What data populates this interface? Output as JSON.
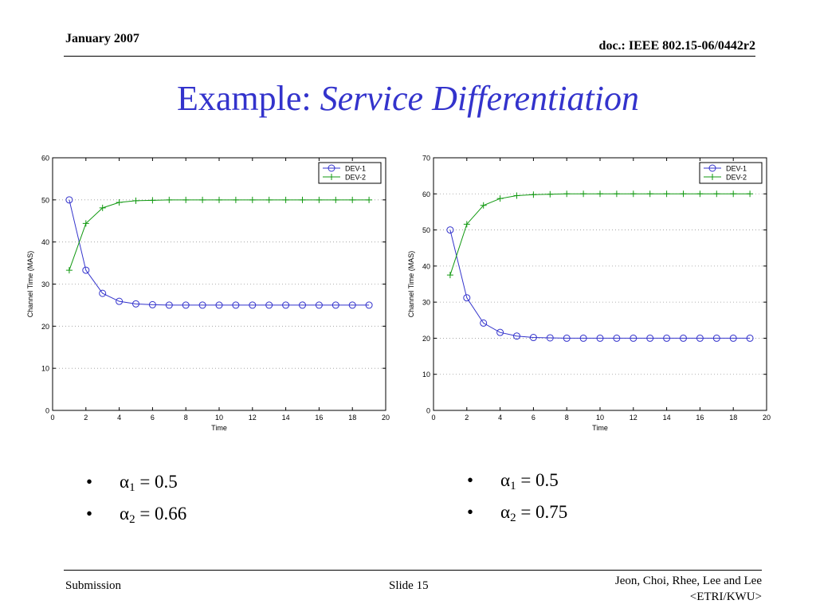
{
  "header": {
    "date": "January 2007",
    "doc_id": "doc.: IEEE 802.15-06/0442r2"
  },
  "title": {
    "prefix": "Example: ",
    "emphasis": "Service Differentiation"
  },
  "colors": {
    "title": "#3333cc",
    "dev1": "#3333cc",
    "dev2": "#119911"
  },
  "chart_data": [
    {
      "type": "line",
      "xlabel": "Time",
      "ylabel": "Channel Time (MAS)",
      "xlim": [
        0,
        20
      ],
      "ylim": [
        0,
        60
      ],
      "xticks": [
        0,
        2,
        4,
        6,
        8,
        10,
        12,
        14,
        16,
        18,
        20
      ],
      "yticks": [
        0,
        10,
        20,
        30,
        40,
        50,
        60
      ],
      "grid": "dotted horizontal",
      "legend": "top-right",
      "x": [
        1,
        2,
        3,
        4,
        5,
        6,
        7,
        8,
        9,
        10,
        11,
        12,
        13,
        14,
        15,
        16,
        17,
        18,
        19
      ],
      "series": [
        {
          "name": "DEV-1",
          "marker": "circle",
          "values": [
            50,
            33.3,
            27.8,
            25.9,
            25.3,
            25.1,
            25.0,
            25.0,
            25.0,
            25.0,
            25.0,
            25.0,
            25.0,
            25.0,
            25.0,
            25.0,
            25.0,
            25.0,
            25.0
          ]
        },
        {
          "name": "DEV-2",
          "marker": "plus",
          "values": [
            33.3,
            44.4,
            48.1,
            49.4,
            49.8,
            49.9,
            50.0,
            50.0,
            50.0,
            50.0,
            50.0,
            50.0,
            50.0,
            50.0,
            50.0,
            50.0,
            50.0,
            50.0,
            50.0
          ]
        }
      ]
    },
    {
      "type": "line",
      "xlabel": "Time",
      "ylabel": "Channel Time (MAS)",
      "xlim": [
        0,
        20
      ],
      "ylim": [
        0,
        70
      ],
      "xticks": [
        0,
        2,
        4,
        6,
        8,
        10,
        12,
        14,
        16,
        18,
        20
      ],
      "yticks": [
        0,
        10,
        20,
        30,
        40,
        50,
        60,
        70
      ],
      "grid": "dotted horizontal",
      "legend": "top-right",
      "x": [
        1,
        2,
        3,
        4,
        5,
        6,
        7,
        8,
        9,
        10,
        11,
        12,
        13,
        14,
        15,
        16,
        17,
        18,
        19
      ],
      "series": [
        {
          "name": "DEV-1",
          "marker": "circle",
          "values": [
            50,
            31.2,
            24.2,
            21.6,
            20.6,
            20.2,
            20.1,
            20.0,
            20.0,
            20.0,
            20.0,
            20.0,
            20.0,
            20.0,
            20.0,
            20.0,
            20.0,
            20.0,
            20.0
          ]
        },
        {
          "name": "DEV-2",
          "marker": "plus",
          "values": [
            37.5,
            51.6,
            56.8,
            58.7,
            59.5,
            59.8,
            59.9,
            60.0,
            60.0,
            60.0,
            60.0,
            60.0,
            60.0,
            60.0,
            60.0,
            60.0,
            60.0,
            60.0,
            60.0
          ]
        }
      ]
    }
  ],
  "bullets_left": [
    {
      "symbol": "•",
      "greek": "α",
      "sub": "1",
      "rest": " = 0.5"
    },
    {
      "symbol": "•",
      "greek": "α",
      "sub": "2",
      "rest": " = 0.66"
    }
  ],
  "bullets_right": [
    {
      "symbol": "•",
      "greek": "α",
      "sub": "1",
      "rest": " = 0.5"
    },
    {
      "symbol": "•",
      "greek": "α",
      "sub": "2",
      "rest": " = 0.75"
    }
  ],
  "footer": {
    "left": "Submission",
    "center": "Slide 15",
    "right_line1": "Jeon, Choi, Rhee, Lee and Lee",
    "right_line2": "<ETRI/KWU>"
  }
}
